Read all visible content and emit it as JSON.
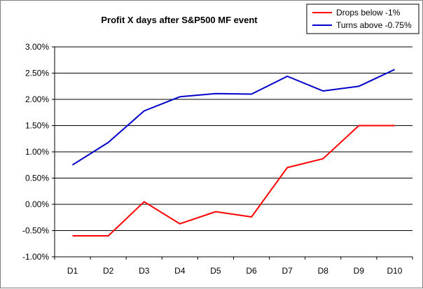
{
  "chart_data": {
    "type": "line",
    "title": "Profit X days after S&P500 MF event",
    "categories": [
      "D1",
      "D2",
      "D3",
      "D4",
      "D5",
      "D6",
      "D7",
      "D8",
      "D9",
      "D10"
    ],
    "series": [
      {
        "name": "Drops below -1%",
        "color": "#ff0000",
        "values": [
          -0.006,
          -0.006,
          0.0005,
          -0.0037,
          -0.0014,
          -0.0024,
          0.007,
          0.0087,
          0.015,
          0.015
        ]
      },
      {
        "name": "Turns above -0.75%",
        "color": "#0000cc",
        "values": [
          0.0075,
          0.0118,
          0.0178,
          0.0205,
          0.0211,
          0.021,
          0.0244,
          0.0216,
          0.0225,
          0.0257
        ]
      }
    ],
    "y_ticks": [
      "3.00%",
      "2.50%",
      "2.00%",
      "1.50%",
      "1.00%",
      "0.50%",
      "0.00%",
      "-0.50%",
      "-1.00%"
    ],
    "ylim": [
      -0.01,
      0.03
    ],
    "xlabel": "",
    "ylabel": "",
    "grid": "horizontal",
    "legend_position": "top-right"
  }
}
